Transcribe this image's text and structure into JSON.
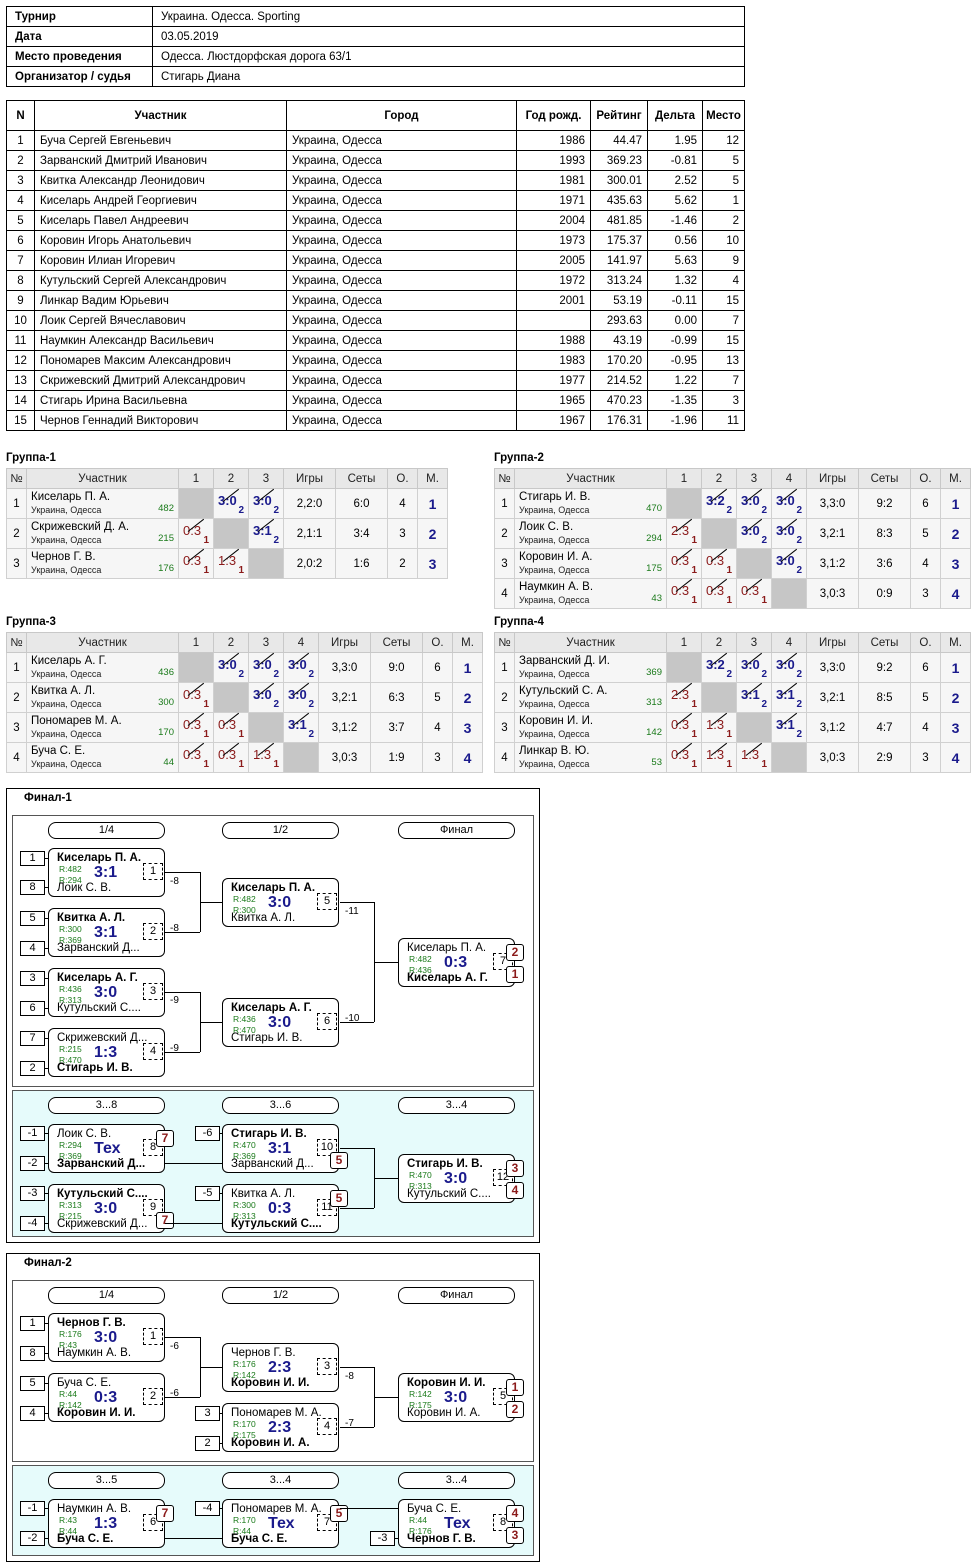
{
  "info": {
    "rows": [
      {
        "k": "Турнир",
        "v": "Украина. Одесса. Sporting"
      },
      {
        "k": "Дата",
        "v": "03.05.2019"
      },
      {
        "k": "Место проведения",
        "v": "Одесса. Люстдорфская дорога 63/1"
      },
      {
        "k": "Организатор / судья",
        "v": "Стигарь Диана"
      }
    ]
  },
  "participants": {
    "headers": [
      "N",
      "Участник",
      "Город",
      "Год рожд.",
      "Рейтинг",
      "Дельта",
      "Место"
    ],
    "rows": [
      [
        "1",
        "Буча Сергей Евгеньевич",
        "Украина, Одесса",
        "1986",
        "44.47",
        "1.95",
        "12"
      ],
      [
        "2",
        "Зарванский Дмитрий Иванович",
        "Украина, Одесса",
        "1993",
        "369.23",
        "-0.81",
        "5"
      ],
      [
        "3",
        "Квитка Александр Леонидович",
        "Украина, Одесса",
        "1981",
        "300.01",
        "2.52",
        "5"
      ],
      [
        "4",
        "Киселарь Андрей Георгиевич",
        "Украина, Одесса",
        "1971",
        "435.63",
        "5.62",
        "1"
      ],
      [
        "5",
        "Киселарь Павел Андреевич",
        "Украина, Одесса",
        "2004",
        "481.85",
        "-1.46",
        "2"
      ],
      [
        "6",
        "Коровин Игорь Анатольевич",
        "Украина, Одесса",
        "1973",
        "175.37",
        "0.56",
        "10"
      ],
      [
        "7",
        "Коровин Илиан Игоревич",
        "Украина, Одесса",
        "2005",
        "141.97",
        "5.63",
        "9"
      ],
      [
        "8",
        "Кутульский Сергей Александрович",
        "Украина, Одесса",
        "1972",
        "313.24",
        "1.32",
        "4"
      ],
      [
        "9",
        "Линкар Вадим Юрьевич",
        "Украина, Одесса",
        "2001",
        "53.19",
        "-0.11",
        "15"
      ],
      [
        "10",
        "Лоик Сергей Вячеславович",
        "Украина, Одесса",
        "",
        "293.63",
        "0.00",
        "7"
      ],
      [
        "11",
        "Наумкин Александр Васильевич",
        "Украина, Одесса",
        "1988",
        "43.19",
        "-0.99",
        "15"
      ],
      [
        "12",
        "Пономарев Максим Александрович",
        "Украина, Одесса",
        "1983",
        "170.20",
        "-0.95",
        "13"
      ],
      [
        "13",
        "Скрижевский Дмитрий Александрович",
        "Украина, Одесса",
        "1977",
        "214.52",
        "1.22",
        "7"
      ],
      [
        "14",
        "Стигарь Ирина Васильевна",
        "Украина, Одесса",
        "1965",
        "470.23",
        "-1.35",
        "3"
      ],
      [
        "15",
        "Чернов Геннадий Викторович",
        "Украина, Одесса",
        "1967",
        "176.31",
        "-1.96",
        "11"
      ]
    ]
  },
  "group_headers": {
    "no": "№",
    "part": "Участник",
    "games": "Игры",
    "sets": "Сеты",
    "pts": "О.",
    "place": "М."
  },
  "groups": [
    {
      "title": "Группа-1",
      "size": 3,
      "players": [
        {
          "n": "1",
          "name": "Киселарь П. А.",
          "city": "Украина, Одесса",
          "rating": "482",
          "games": "2,2:0",
          "sets": "6:0",
          "pts": "4",
          "place": "1",
          "res": [
            null,
            [
              "3:0",
              "2",
              "w"
            ],
            [
              "3:0",
              "2",
              "w"
            ]
          ]
        },
        {
          "n": "2",
          "name": "Скрижевский Д. А.",
          "city": "Украина, Одесса",
          "rating": "215",
          "games": "2,1:1",
          "sets": "3:4",
          "pts": "3",
          "place": "2",
          "res": [
            [
              "0:3",
              "1",
              "l"
            ],
            null,
            [
              "3:1",
              "2",
              "w"
            ]
          ]
        },
        {
          "n": "3",
          "name": "Чернов Г. В.",
          "city": "Украина, Одесса",
          "rating": "176",
          "games": "2,0:2",
          "sets": "1:6",
          "pts": "2",
          "place": "3",
          "res": [
            [
              "0:3",
              "1",
              "l"
            ],
            [
              "1:3",
              "1",
              "l"
            ],
            null
          ]
        }
      ]
    },
    {
      "title": "Группа-2",
      "size": 4,
      "players": [
        {
          "n": "1",
          "name": "Стигарь И. В.",
          "city": "Украина, Одесса",
          "rating": "470",
          "games": "3,3:0",
          "sets": "9:2",
          "pts": "6",
          "place": "1",
          "res": [
            null,
            [
              "3:2",
              "2",
              "w"
            ],
            [
              "3:0",
              "2",
              "w"
            ],
            [
              "3:0",
              "2",
              "w"
            ]
          ]
        },
        {
          "n": "2",
          "name": "Лоик С. В.",
          "city": "Украина, Одесса",
          "rating": "294",
          "games": "3,2:1",
          "sets": "8:3",
          "pts": "5",
          "place": "2",
          "res": [
            [
              "2:3",
              "1",
              "l"
            ],
            null,
            [
              "3:0",
              "2",
              "w"
            ],
            [
              "3:0",
              "2",
              "w"
            ]
          ]
        },
        {
          "n": "3",
          "name": "Коровин И. А.",
          "city": "Украина, Одесса",
          "rating": "175",
          "games": "3,1:2",
          "sets": "3:6",
          "pts": "4",
          "place": "3",
          "res": [
            [
              "0:3",
              "1",
              "l"
            ],
            [
              "0:3",
              "1",
              "l"
            ],
            null,
            [
              "3:0",
              "2",
              "w"
            ]
          ]
        },
        {
          "n": "4",
          "name": "Наумкин А. В.",
          "city": "Украина, Одесса",
          "rating": "43",
          "games": "3,0:3",
          "sets": "0:9",
          "pts": "3",
          "place": "4",
          "res": [
            [
              "0:3",
              "1",
              "l"
            ],
            [
              "0:3",
              "1",
              "l"
            ],
            [
              "0:3",
              "1",
              "l"
            ],
            null
          ]
        }
      ]
    },
    {
      "title": "Группа-3",
      "size": 4,
      "players": [
        {
          "n": "1",
          "name": "Киселарь А. Г.",
          "city": "Украина, Одесса",
          "rating": "436",
          "games": "3,3:0",
          "sets": "9:0",
          "pts": "6",
          "place": "1",
          "res": [
            null,
            [
              "3:0",
              "2",
              "w"
            ],
            [
              "3:0",
              "2",
              "w"
            ],
            [
              "3:0",
              "2",
              "w"
            ]
          ]
        },
        {
          "n": "2",
          "name": "Квитка А. Л.",
          "city": "Украина, Одесса",
          "rating": "300",
          "games": "3,2:1",
          "sets": "6:3",
          "pts": "5",
          "place": "2",
          "res": [
            [
              "0:3",
              "1",
              "l"
            ],
            null,
            [
              "3:0",
              "2",
              "w"
            ],
            [
              "3:0",
              "2",
              "w"
            ]
          ]
        },
        {
          "n": "3",
          "name": "Пономарев М. А.",
          "city": "Украина, Одесса",
          "rating": "170",
          "games": "3,1:2",
          "sets": "3:7",
          "pts": "4",
          "place": "3",
          "res": [
            [
              "0:3",
              "1",
              "l"
            ],
            [
              "0:3",
              "1",
              "l"
            ],
            null,
            [
              "3:1",
              "2",
              "w"
            ]
          ]
        },
        {
          "n": "4",
          "name": "Буча С. Е.",
          "city": "Украина, Одесса",
          "rating": "44",
          "games": "3,0:3",
          "sets": "1:9",
          "pts": "3",
          "place": "4",
          "res": [
            [
              "0:3",
              "1",
              "l"
            ],
            [
              "0:3",
              "1",
              "l"
            ],
            [
              "1:3",
              "1",
              "l"
            ],
            null
          ]
        }
      ]
    },
    {
      "title": "Группа-4",
      "size": 4,
      "players": [
        {
          "n": "1",
          "name": "Зарванский Д. И.",
          "city": "Украина, Одесса",
          "rating": "369",
          "games": "3,3:0",
          "sets": "9:2",
          "pts": "6",
          "place": "1",
          "res": [
            null,
            [
              "3:2",
              "2",
              "w"
            ],
            [
              "3:0",
              "2",
              "w"
            ],
            [
              "3:0",
              "2",
              "w"
            ]
          ]
        },
        {
          "n": "2",
          "name": "Кутульский С. А.",
          "city": "Украина, Одесса",
          "rating": "313",
          "games": "3,2:1",
          "sets": "8:5",
          "pts": "5",
          "place": "2",
          "res": [
            [
              "2:3",
              "1",
              "l"
            ],
            null,
            [
              "3:1",
              "2",
              "w"
            ],
            [
              "3:1",
              "2",
              "w"
            ]
          ]
        },
        {
          "n": "3",
          "name": "Коровин И. И.",
          "city": "Украина, Одесса",
          "rating": "142",
          "games": "3,1:2",
          "sets": "4:7",
          "pts": "4",
          "place": "3",
          "res": [
            [
              "0:3",
              "1",
              "l"
            ],
            [
              "1:3",
              "1",
              "l"
            ],
            null,
            [
              "3:1",
              "2",
              "w"
            ]
          ]
        },
        {
          "n": "4",
          "name": "Линкар В. Ю.",
          "city": "Украина, Одесса",
          "rating": "53",
          "games": "3,0:3",
          "sets": "2:9",
          "pts": "3",
          "place": "4",
          "res": [
            [
              "0:3",
              "1",
              "l"
            ],
            [
              "1:3",
              "1",
              "l"
            ],
            [
              "1:3",
              "1",
              "l"
            ],
            null
          ]
        }
      ]
    }
  ],
  "finals": [
    {
      "title": "Финал-1",
      "pills": [
        "1/4",
        "1/2",
        "Финал",
        "3...8",
        "3...6",
        "3...4"
      ],
      "seeds": [
        "1",
        "8",
        "5",
        "4",
        "3",
        "6",
        "7",
        "2",
        "-1",
        "-2",
        "-3",
        "-4",
        "-6",
        "-5"
      ],
      "losses": [
        "-8",
        "-8",
        "-9",
        "-9",
        "-11",
        "-10"
      ],
      "matches": [
        {
          "n1": "Киселарь П. А.",
          "r1": "R:482",
          "r2": "R:294",
          "n2": "Лоик С. В.",
          "score": "3:1",
          "no": "1"
        },
        {
          "n1": "Квитка А. Л.",
          "r1": "R:300",
          "r2": "R:369",
          "n2": "Зарванский Д...",
          "score": "3:1",
          "no": "2"
        },
        {
          "n1": "Киселарь А. Г.",
          "r1": "R:436",
          "r2": "R:313",
          "n2": "Кутульский С....",
          "score": "3:0",
          "no": "3"
        },
        {
          "n1": "Скрижевский Д...",
          "r1": "R:215",
          "r2": "R:470",
          "n2": "Стигарь И. В.",
          "score": "1:3",
          "no": "4"
        },
        {
          "n1": "Киселарь П. А.",
          "r1": "R:482",
          "r2": "R:300",
          "n2": "Квитка А. Л.",
          "score": "3:0",
          "no": "5"
        },
        {
          "n1": "Киселарь А. Г.",
          "r1": "R:436",
          "r2": "R:470",
          "n2": "Стигарь И. В.",
          "score": "3:0",
          "no": "6"
        },
        {
          "n1": "Киселарь П. А.",
          "r1": "R:482",
          "r2": "R:436",
          "n2": "Киселарь А. Г.",
          "score": "0:3",
          "no": "7",
          "p1": "2",
          "p2": "1"
        },
        {
          "n1": "Лоик С. В.",
          "r1": "R:294",
          "r2": "R:369",
          "n2": "Зарванский Д...",
          "score": "Тех",
          "no": "8",
          "p1": "7"
        },
        {
          "n1": "Кутульский С....",
          "r1": "R:313",
          "r2": "R:215",
          "n2": "Скрижевский Д...",
          "score": "3:0",
          "no": "9",
          "p2": "7"
        },
        {
          "n1": "Стигарь И. В.",
          "r1": "R:470",
          "r2": "R:369",
          "n2": "Зарванский Д...",
          "score": "3:1",
          "no": "10",
          "p2": "5"
        },
        {
          "n1": "Квитка А. Л.",
          "r1": "R:300",
          "r2": "R:313",
          "n2": "Кутульский С....",
          "score": "0:3",
          "no": "11",
          "p1": "5"
        },
        {
          "n1": "Стигарь И. В.",
          "r1": "R:470",
          "r2": "R:313",
          "n2": "Кутульский С....",
          "score": "3:0",
          "no": "12",
          "p1": "3",
          "p2": "4"
        }
      ]
    },
    {
      "title": "Финал-2",
      "pills": [
        "1/4",
        "1/2",
        "Финал",
        "3...5",
        "3...4",
        "3...4"
      ],
      "seeds": [
        "1",
        "8",
        "5",
        "4",
        "3",
        "2",
        "-1",
        "-2",
        "-4",
        "-3"
      ],
      "losses": [
        "-6",
        "-6",
        "-8",
        "-7"
      ],
      "matches": [
        {
          "n1": "Чернов Г. В.",
          "r1": "R:176",
          "r2": "R:43",
          "n2": "Наумкин А. В.",
          "score": "3:0",
          "no": "1"
        },
        {
          "n1": "Буча С. Е.",
          "r1": "R:44",
          "r2": "R:142",
          "n2": "Коровин И. И.",
          "score": "0:3",
          "no": "2"
        },
        {
          "n1": "Чернов Г. В.",
          "r1": "R:176",
          "r2": "R:142",
          "n2": "Коровин И. И.",
          "score": "2:3",
          "no": "3"
        },
        {
          "n1": "Пономарев М. А.",
          "r1": "R:170",
          "r2": "R:175",
          "n2": "Коровин И. А.",
          "score": "2:3",
          "no": "4"
        },
        {
          "n1": "Коровин И. И.",
          "r1": "R:142",
          "r2": "R:175",
          "n2": "Коровин И. А.",
          "score": "3:0",
          "no": "5",
          "p1": "1",
          "p2": "2"
        },
        {
          "n1": "Наумкин А. В.",
          "r1": "R:43",
          "r2": "R:44",
          "n2": "Буча С. Е.",
          "score": "1:3",
          "no": "6",
          "p1": "7"
        },
        {
          "n1": "Пономарев М. А.",
          "r1": "R:170",
          "r2": "R:44",
          "n2": "Буча С. Е.",
          "score": "Тех",
          "no": "7",
          "p1": "5"
        },
        {
          "n1": "Буча С. Е.",
          "r1": "R:44",
          "r2": "R:176",
          "n2": "Чернов Г. В.",
          "score": "Тех",
          "no": "8",
          "p1": "4",
          "p2": "3"
        }
      ]
    }
  ]
}
